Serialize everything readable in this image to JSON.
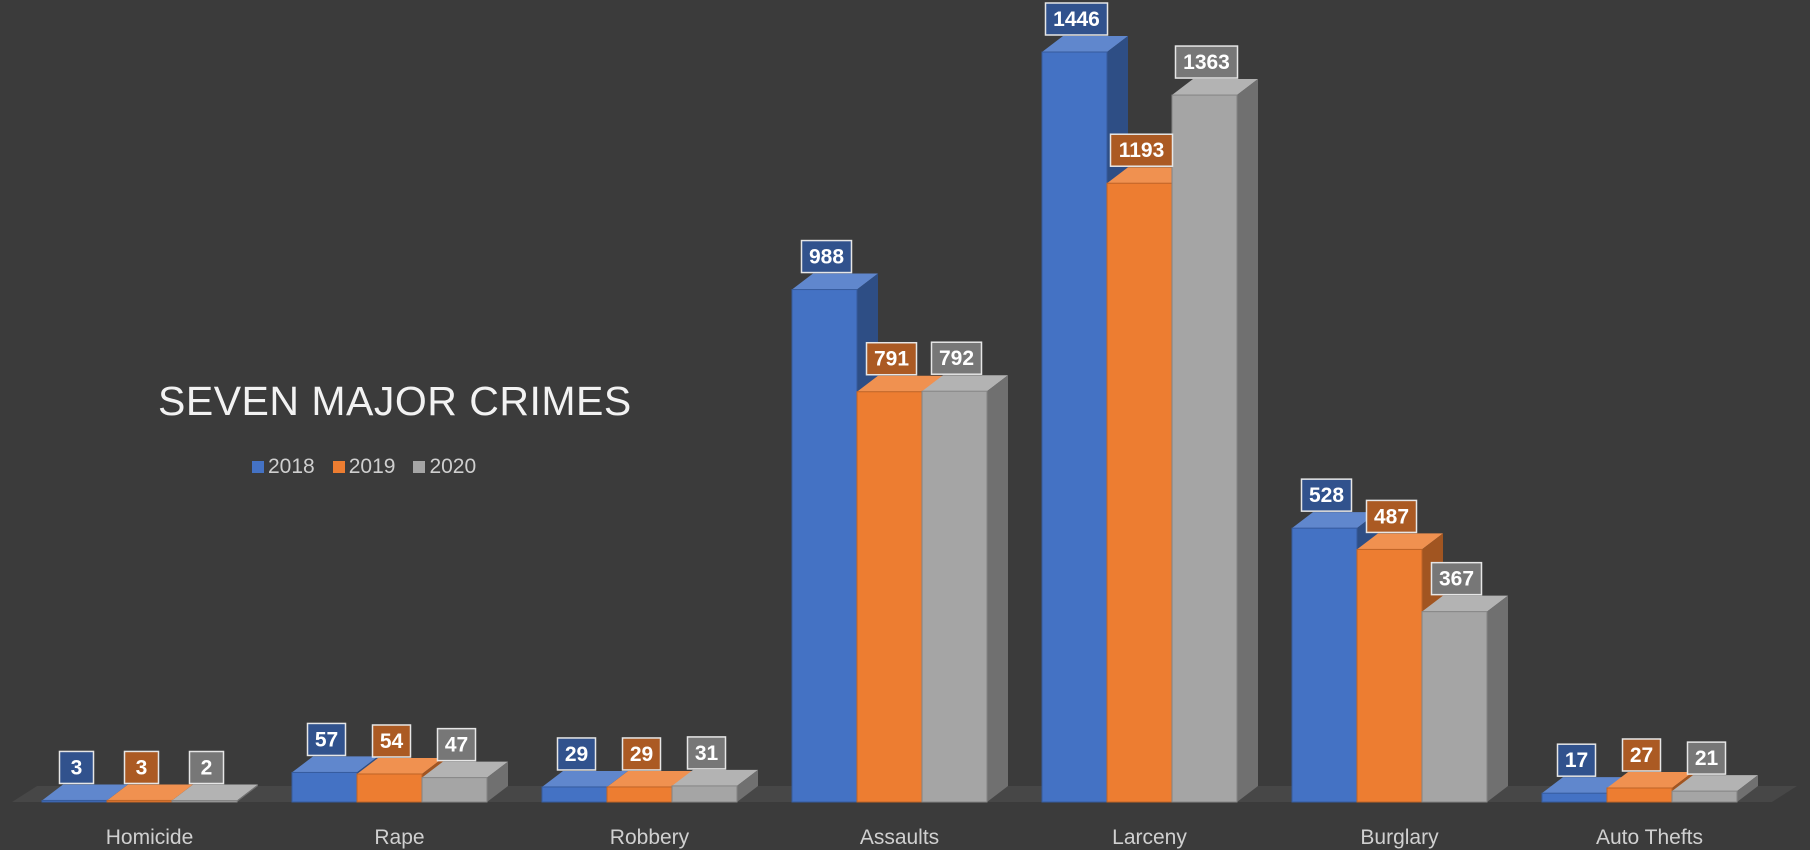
{
  "chart_data": {
    "type": "bar",
    "title": "SEVEN MAJOR CRIMES",
    "xlabel": "",
    "ylabel": "",
    "categories": [
      "Homicide",
      "Rape",
      "Robbery",
      "Assaults",
      "Larceny",
      "Burglary",
      "Auto Thefts"
    ],
    "series": [
      {
        "name": "2018",
        "color": "#4472c4",
        "values": [
          3,
          57,
          29,
          988,
          1446,
          528,
          17
        ]
      },
      {
        "name": "2019",
        "color": "#ed7d31",
        "values": [
          3,
          54,
          29,
          791,
          1193,
          487,
          27
        ]
      },
      {
        "name": "2020",
        "color": "#a5a5a5",
        "values": [
          2,
          47,
          31,
          792,
          1363,
          367,
          21
        ]
      }
    ],
    "ylim": [
      0,
      1446
    ],
    "grid": false,
    "legend": "left",
    "data_labels": true,
    "style": "3d-clustered-column"
  }
}
